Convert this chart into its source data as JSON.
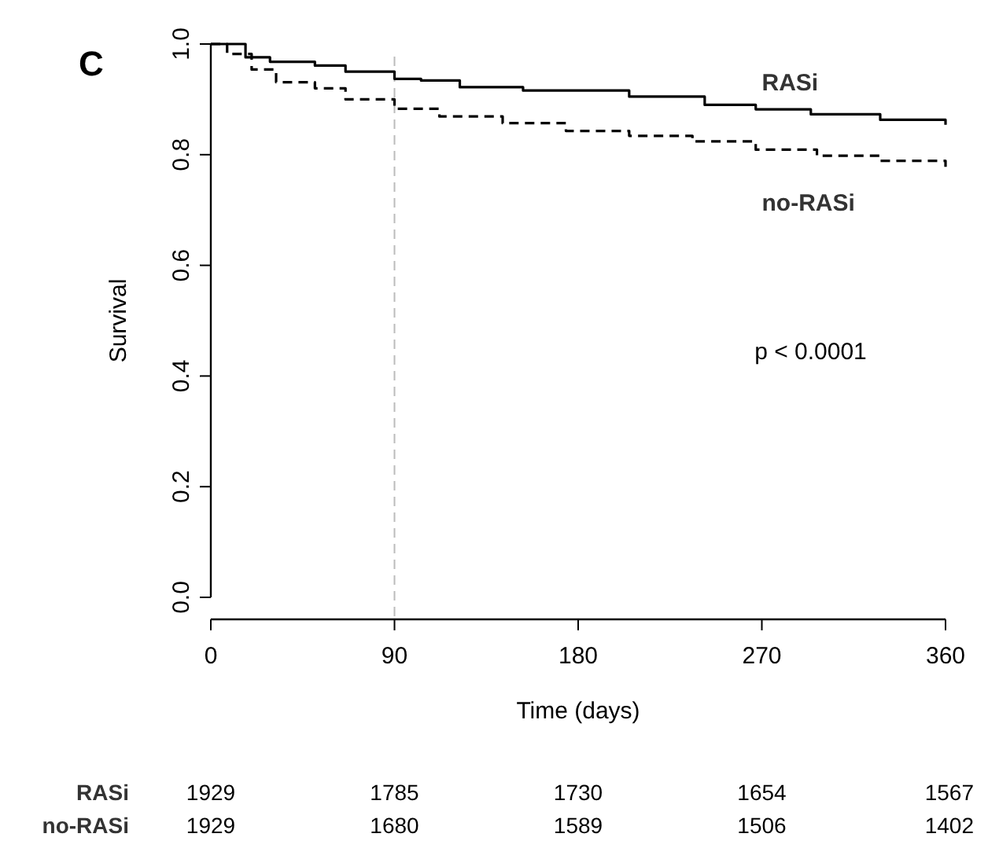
{
  "chart_data": {
    "type": "step",
    "xlabel": "Time (days)",
    "ylabel": "Survival",
    "xlim": [
      0,
      360
    ],
    "ylim": [
      0,
      1
    ],
    "xticks": [
      0,
      90,
      180,
      270,
      360
    ],
    "yticks": [
      {
        "value": 0,
        "label": "0.0"
      },
      0.2,
      0.4,
      0.6,
      0.8,
      {
        "value": 1,
        "label": "1.0"
      }
    ],
    "grid": false,
    "series": [
      {
        "name": "RASi",
        "color": "#000000",
        "line_style": "solid",
        "x": [
          0,
          17,
          29,
          51,
          66,
          90,
          103,
          122,
          143,
          153,
          205,
          242,
          267,
          294,
          328,
          360
        ],
        "values": [
          1.0,
          0.976,
          0.968,
          0.961,
          0.95,
          0.937,
          0.934,
          0.922,
          0.922,
          0.916,
          0.905,
          0.89,
          0.882,
          0.873,
          0.863,
          0.854
        ]
      },
      {
        "name": "no-RASi",
        "color": "#000000",
        "line_style": "dashed",
        "x": [
          0,
          8,
          20,
          32,
          51,
          66,
          90,
          112,
          143,
          174,
          205,
          236,
          267,
          297,
          328,
          360
        ],
        "values": [
          1.0,
          0.982,
          0.954,
          0.931,
          0.92,
          0.9,
          0.883,
          0.869,
          0.857,
          0.843,
          0.834,
          0.824,
          0.809,
          0.798,
          0.789,
          0.778
        ]
      }
    ],
    "ref_lines": [
      {
        "axis": "x",
        "value": 90,
        "color": "#bbbbbb",
        "line_style": "dashed"
      }
    ],
    "annotations": [
      "C",
      "p < 0.0001",
      "RASi",
      "1929",
      "1785",
      "1730",
      "1654",
      "1567",
      "no-RASi",
      "1929",
      "1680",
      "1589",
      "1506",
      "1402"
    ]
  }
}
